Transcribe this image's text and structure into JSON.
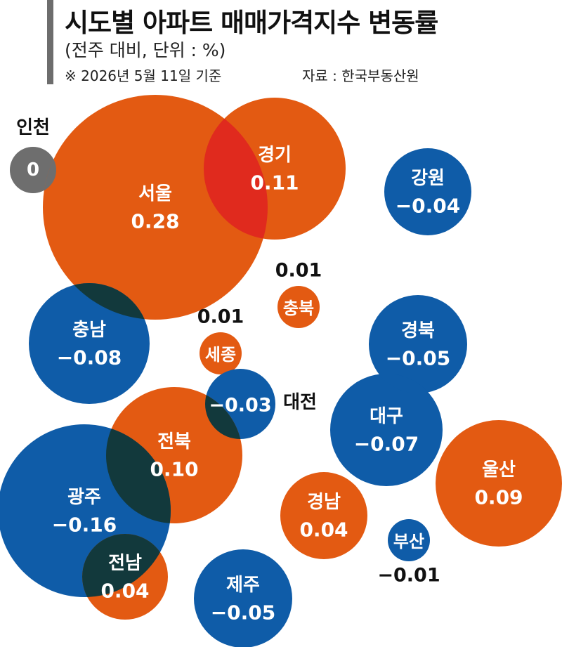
{
  "header": {
    "title": "시도별 아파트 매매가격지수 변동률",
    "subtitle": "(전주 대비, 단위 : %)",
    "ref_date": "※ 2026년 5월 11일 기준",
    "source": "자료 : 한국부동산원"
  },
  "colors": {
    "positive": "#e35a12",
    "negative": "#0f5ca8",
    "zero": "#6e6e6e",
    "overlap_positive": "#e02a1e",
    "overlap_mixed": "#12393c",
    "text_inside": "#ffffff",
    "text_outside": "#111111"
  },
  "chart_data": {
    "type": "bubble",
    "unit": "%",
    "items": [
      {
        "region": "인천",
        "value": 0,
        "value_label": "0"
      },
      {
        "region": "서울",
        "value": 0.28,
        "value_label": "0.28"
      },
      {
        "region": "경기",
        "value": 0.11,
        "value_label": "0.11"
      },
      {
        "region": "강원",
        "value": -0.04,
        "value_label": "−0.04"
      },
      {
        "region": "충북",
        "value": 0.01,
        "value_label": "0.01"
      },
      {
        "region": "세종",
        "value": 0.01,
        "value_label": "0.01"
      },
      {
        "region": "충남",
        "value": -0.08,
        "value_label": "−0.08"
      },
      {
        "region": "경북",
        "value": -0.05,
        "value_label": "−0.05"
      },
      {
        "region": "대전",
        "value": -0.03,
        "value_label": "−0.03"
      },
      {
        "region": "대구",
        "value": -0.07,
        "value_label": "−0.07"
      },
      {
        "region": "전북",
        "value": 0.1,
        "value_label": "0.10"
      },
      {
        "region": "울산",
        "value": 0.09,
        "value_label": "0.09"
      },
      {
        "region": "광주",
        "value": -0.16,
        "value_label": "−0.16"
      },
      {
        "region": "경남",
        "value": 0.04,
        "value_label": "0.04"
      },
      {
        "region": "부산",
        "value": -0.01,
        "value_label": "−0.01"
      },
      {
        "region": "전남",
        "value": 0.04,
        "value_label": "0.04"
      },
      {
        "region": "제주",
        "value": -0.05,
        "value_label": "−0.05"
      }
    ]
  }
}
